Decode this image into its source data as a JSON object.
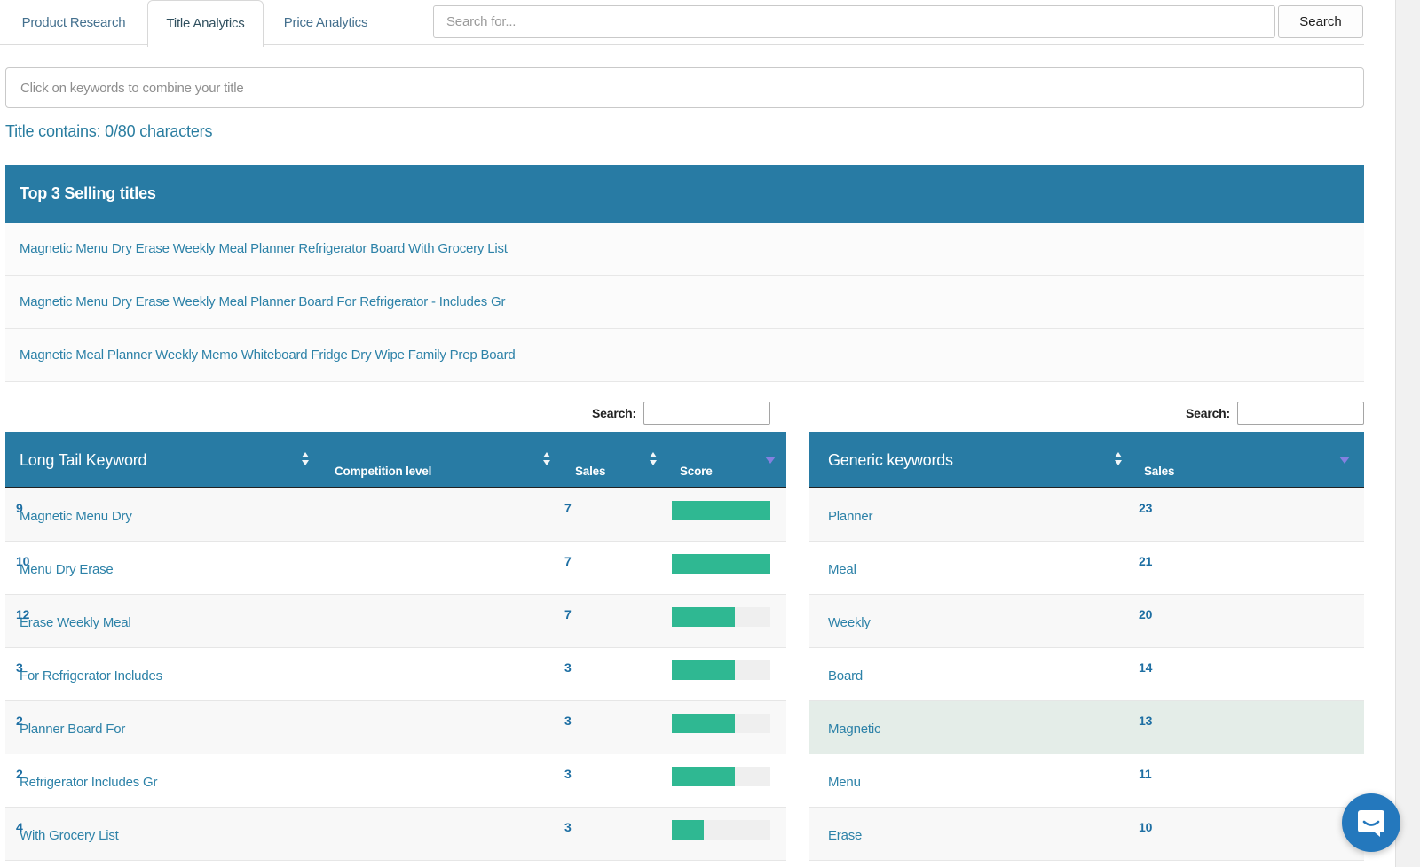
{
  "tabs": [
    {
      "label": "Product Research",
      "active": false
    },
    {
      "label": "Title Analytics",
      "active": true
    },
    {
      "label": "Price Analytics",
      "active": false
    }
  ],
  "top_search": {
    "placeholder": "Search for...",
    "button_label": "Search"
  },
  "title_builder": {
    "placeholder": "Click on keywords to combine your title",
    "counter": "Title contains: 0/80 characters"
  },
  "top_titles": {
    "header": "Top 3 Selling titles",
    "items": [
      "Magnetic Menu Dry Erase Weekly Meal Planner Refrigerator Board With Grocery List",
      "Magnetic Menu Dry Erase Weekly Meal Planner Board For Refrigerator - Includes Gr",
      "Magnetic Meal Planner Weekly Memo Whiteboard Fridge Dry Wipe Family Prep Board"
    ]
  },
  "left_table": {
    "search_label": "Search:",
    "columns": {
      "keyword": "Long Tail Keyword",
      "competition": "Competition level",
      "sales": "Sales",
      "score": "Score"
    },
    "rows": [
      {
        "keyword": "Magnetic Menu Dry",
        "competition": "9",
        "sales": "7",
        "score_pct": 100
      },
      {
        "keyword": "Menu Dry Erase",
        "competition": "10",
        "sales": "7",
        "score_pct": 100
      },
      {
        "keyword": "Erase Weekly Meal",
        "competition": "12",
        "sales": "7",
        "score_pct": 64
      },
      {
        "keyword": "For Refrigerator Includes",
        "competition": "3",
        "sales": "3",
        "score_pct": 64
      },
      {
        "keyword": "Planner Board For",
        "competition": "2",
        "sales": "3",
        "score_pct": 64
      },
      {
        "keyword": "Refrigerator Includes Gr",
        "competition": "2",
        "sales": "3",
        "score_pct": 64
      },
      {
        "keyword": "With Grocery List",
        "competition": "4",
        "sales": "3",
        "score_pct": 32
      }
    ]
  },
  "right_table": {
    "search_label": "Search:",
    "columns": {
      "keyword": "Generic keywords",
      "sales": "Sales"
    },
    "rows": [
      {
        "keyword": "Planner",
        "sales": "23",
        "highlighted": false
      },
      {
        "keyword": "Meal",
        "sales": "21",
        "highlighted": false
      },
      {
        "keyword": "Weekly",
        "sales": "20",
        "highlighted": false
      },
      {
        "keyword": "Board",
        "sales": "14",
        "highlighted": false
      },
      {
        "keyword": "Magnetic",
        "sales": "13",
        "highlighted": true
      },
      {
        "keyword": "Menu",
        "sales": "11",
        "highlighted": false
      },
      {
        "keyword": "Erase",
        "sales": "10",
        "highlighted": false
      }
    ]
  },
  "colors": {
    "header_teal": "#287ba4",
    "score_bar_green": "#2fb892",
    "sort_active_purple": "#8480e0",
    "selected_row": "#e4ede8",
    "link_blue": "#2d82a8",
    "number_blue": "#1e6fa3",
    "chat_blue": "#2478bd"
  }
}
